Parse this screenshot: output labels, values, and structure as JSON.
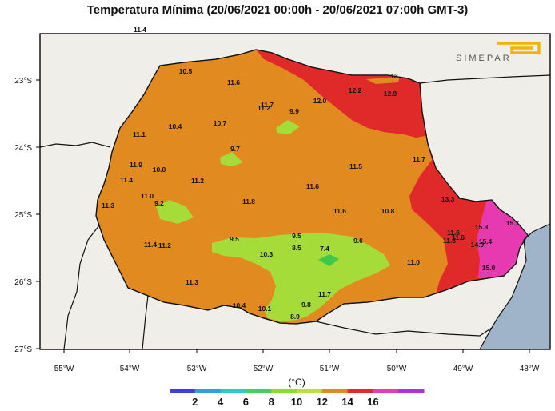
{
  "title": "Temperatura Mínima (20/06/2021 00:00h - 20/06/2021 07:00h GMT-3)",
  "logo_text": "SIMEPAR",
  "map": {
    "lon_labels": [
      "55°W",
      "54°W",
      "53°W",
      "52°W",
      "51°W",
      "50°W",
      "49°W",
      "48°W"
    ],
    "lat_labels": [
      "23°S",
      "24°S",
      "25°S",
      "26°S",
      "27°S"
    ]
  },
  "legend": {
    "unit": "(°C)",
    "ticks": [
      "2",
      "4",
      "6",
      "8",
      "10",
      "12",
      "14",
      "16"
    ],
    "colors": [
      "#3f3fe0",
      "#2f9fe0",
      "#30c8c8",
      "#3fd060",
      "#8fdc30",
      "#b8e040",
      "#e08a20",
      "#e02a2a",
      "#e040b0",
      "#b030e0"
    ]
  },
  "colors": {
    "land_outside": "#efeee8",
    "ocean": "#9fb4c8",
    "band_10_12": "#a6dc3a",
    "band_8_10": "#40c848",
    "band_12_14": "#e08a20",
    "band_14_16": "#e02a2a",
    "band_16_18": "#e83ab0"
  },
  "stations": [
    {
      "v": "11.4"
    },
    {
      "v": "10.5"
    },
    {
      "v": "11.6"
    },
    {
      "v": "11.7"
    },
    {
      "v": "11.2"
    },
    {
      "v": "9.9"
    },
    {
      "v": "12.0"
    },
    {
      "v": "12.2"
    },
    {
      "v": "12.9"
    },
    {
      "v": "13"
    },
    {
      "v": "10.4"
    },
    {
      "v": "10.7"
    },
    {
      "v": "11.1"
    },
    {
      "v": "9.7"
    },
    {
      "v": "11.9"
    },
    {
      "v": "10.0"
    },
    {
      "v": "11.4"
    },
    {
      "v": "11.2"
    },
    {
      "v": "11.5"
    },
    {
      "v": "11.7"
    },
    {
      "v": "11.6"
    },
    {
      "v": "11.0"
    },
    {
      "v": "9.2"
    },
    {
      "v": "11.8"
    },
    {
      "v": "11.3"
    },
    {
      "v": "11.6"
    },
    {
      "v": "10.8"
    },
    {
      "v": "13.3"
    },
    {
      "v": "15.3"
    },
    {
      "v": "9.5"
    },
    {
      "v": "9.5"
    },
    {
      "v": "9.6"
    },
    {
      "v": "11.4"
    },
    {
      "v": "11.2"
    },
    {
      "v": "10.3"
    },
    {
      "v": "8.5"
    },
    {
      "v": "7.4"
    },
    {
      "v": "11.6"
    },
    {
      "v": "11.6"
    },
    {
      "v": "11.5"
    },
    {
      "v": "15.4"
    },
    {
      "v": "14.9"
    },
    {
      "v": "15.7"
    },
    {
      "v": "11.0"
    },
    {
      "v": "11.3"
    },
    {
      "v": "15.0"
    },
    {
      "v": "11.7"
    },
    {
      "v": "10.4"
    },
    {
      "v": "10.1"
    },
    {
      "v": "9.8"
    },
    {
      "v": "8.9"
    }
  ]
}
